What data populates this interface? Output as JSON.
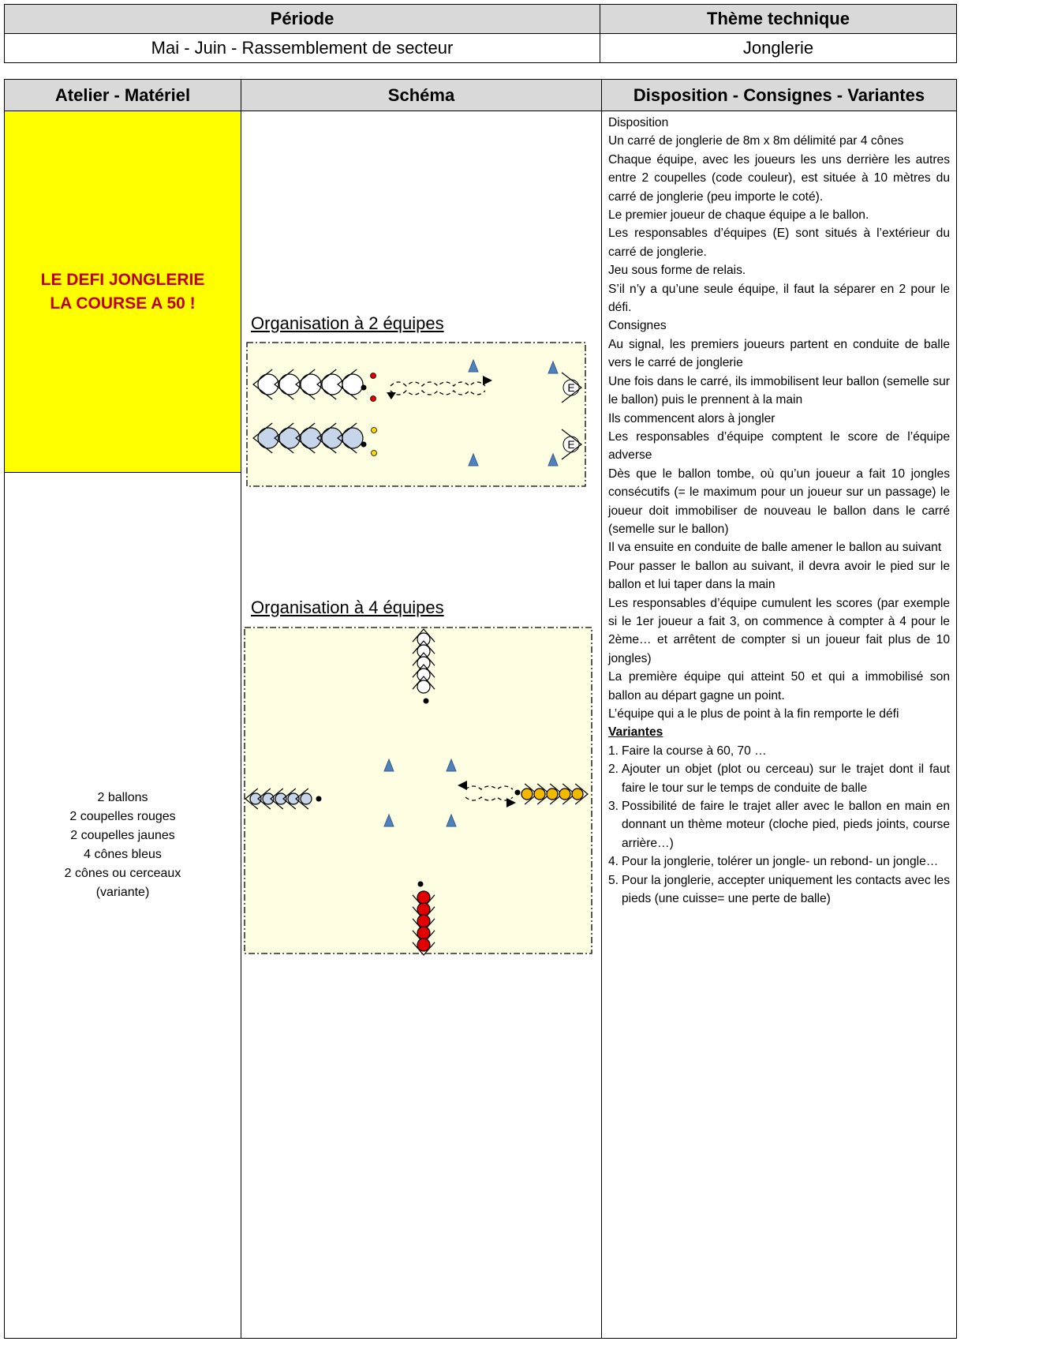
{
  "header_table": {
    "headers": [
      "Période",
      "Thème technique"
    ],
    "row": [
      "Mai - Juin - Rassemblement de secteur",
      "Jonglerie"
    ]
  },
  "main_table": {
    "headers": [
      "Atelier - Matériel",
      "Schéma",
      "Disposition - Consignes - Variantes"
    ],
    "title_lines": [
      "LE DEFI JONGLERIE",
      "LA COURSE A 50 !"
    ],
    "materiel": [
      "2 ballons",
      "2 coupelles rouges",
      "2 coupelles jaunes",
      "4 cônes bleus",
      "2 cônes ou cerceaux",
      "(variante)"
    ],
    "schema_labels": [
      "Organisation à 2 équipes",
      "Organisation à 4 équipes"
    ],
    "team_leader_mark": "E",
    "paragraphs": [
      "Disposition",
      "Un carré de jonglerie de 8m x 8m délimité par 4 cônes",
      "Chaque équipe, avec les joueurs les uns derrière les autres entre 2 coupelles (code couleur), est située à 10 mètres du carré de jonglerie (peu importe le coté).",
      "Le premier joueur de chaque équipe a le ballon.",
      "Les responsables d’équipes (E) sont situés à l’extérieur du carré de jonglerie.",
      "Jeu sous forme de relais.",
      "S’il n’y a qu’une seule équipe, il faut la séparer en 2 pour le défi.",
      "Consignes",
      "Au signal, les premiers joueurs partent en conduite de balle vers le carré de jonglerie",
      "Une fois dans le carré, ils immobilisent leur ballon (semelle sur le ballon) puis le prennent à la main",
      "Ils commencent alors à jongler",
      "Les responsables d’équipe comptent le score de l’équipe adverse",
      "Dès que le ballon tombe, où qu’un joueur a fait 10 jongles consécutifs (= le maximum pour un joueur sur un passage) le joueur doit immobiliser de nouveau le ballon dans le carré (semelle sur le ballon)",
      "Il va ensuite en conduite de balle amener le ballon au suivant",
      "Pour passer le ballon au suivant, il devra avoir le pied sur le ballon et lui taper dans la main",
      "Les responsables d’équipe cumulent les scores (par exemple si le 1er joueur a fait 3, on commence à compter à 4 pour le 2ème… et arrêtent de compter si un joueur fait plus de 10 jongles)",
      "La première équipe qui atteint 50 et qui a immobilisé son ballon au départ gagne un point.",
      "L’équipe qui a le plus de point à la fin remporte le défi"
    ],
    "variantes_title": "Variantes",
    "variantes": [
      {
        "num": "1.",
        "text": "Faire la course à 60, 70 …"
      },
      {
        "num": "2.",
        "text": "Ajouter un objet (plot ou cerceau) sur le trajet dont il faut faire le tour sur le temps de conduite de balle"
      },
      {
        "num": "3.",
        "text": "Possibilité de faire le trajet aller avec le ballon en main en donnant un thème moteur (cloche pied, pieds joints, course arrière…)"
      },
      {
        "num": "4.",
        "text": "Pour la jonglerie, tolérer un jongle- un rebond- un jongle…"
      },
      {
        "num": "5.",
        "text": "Pour la jonglerie, accepter uniquement les contacts avec les pieds (une cuisse= une perte de balle)"
      }
    ]
  }
}
